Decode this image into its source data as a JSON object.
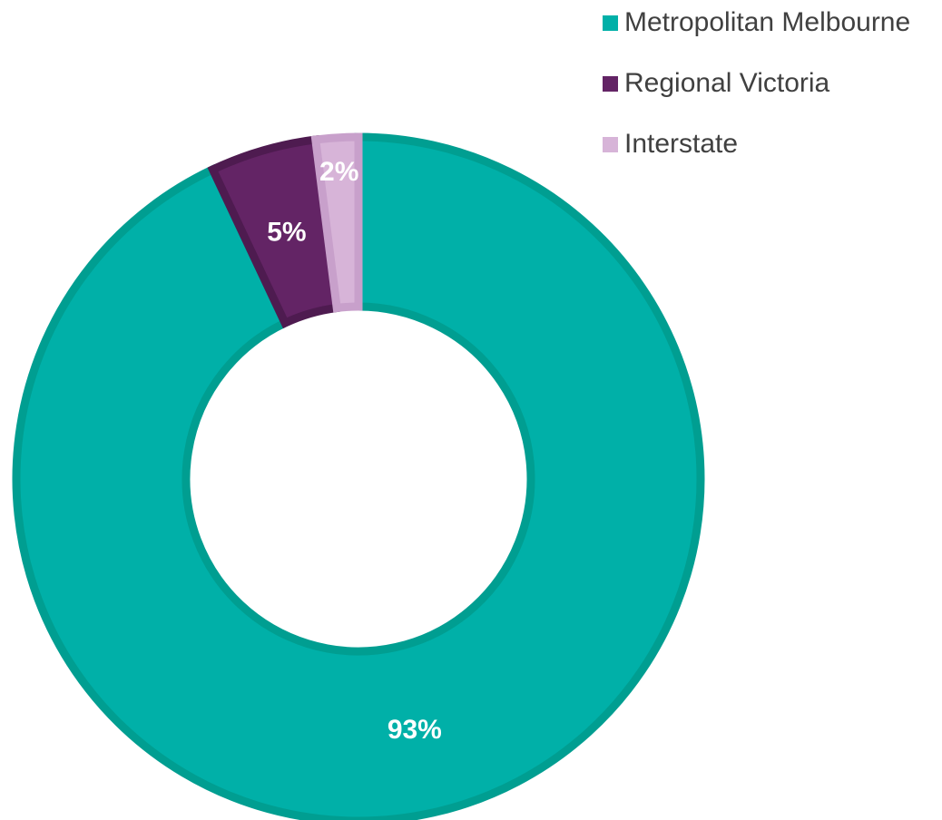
{
  "chart_data": {
    "type": "pie",
    "subtype": "donut",
    "categories": [
      "Metropolitan Melbourne",
      "Regional Victoria",
      "Interstate"
    ],
    "values": [
      93,
      5,
      2
    ],
    "data_labels": [
      "93%",
      "5%",
      "2%"
    ],
    "colors": [
      "#00B0A8",
      "#632465",
      "#D7B4D8"
    ],
    "outline_colors": [
      "#009E91",
      "#4E1B50",
      "#C8A0CB"
    ],
    "legend_position": "top-right",
    "title": "",
    "xlabel": "",
    "ylabel": ""
  },
  "legend": {
    "items": [
      {
        "label": "Metropolitan Melbourne",
        "color": "#00B0A8"
      },
      {
        "label": "Regional Victoria",
        "color": "#632465"
      },
      {
        "label": "Interstate",
        "color": "#D7B4D8"
      }
    ]
  }
}
